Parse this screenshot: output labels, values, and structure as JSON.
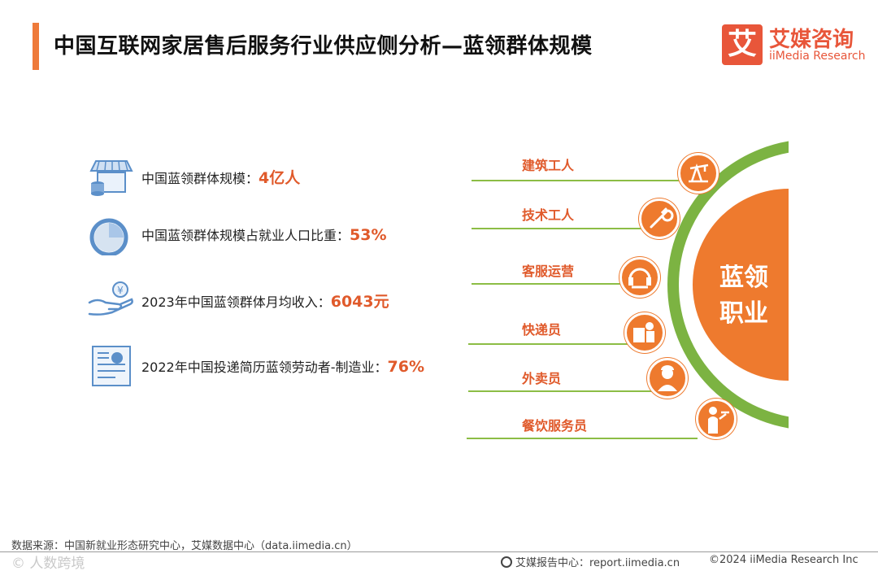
{
  "header": {
    "title": "中国互联网家居售后服务行业供应侧分析—蓝领群体规模",
    "logo_glyph": "艾",
    "logo_cn": "艾媒咨询",
    "logo_en": "iiMedia Research",
    "accent_color": "#ee7a3a"
  },
  "stats": [
    {
      "icon": "storefront-icon",
      "label": "中国蓝领群体规模：",
      "value": "4亿人"
    },
    {
      "icon": "pie-chart-icon",
      "label": "中国蓝领群体规模占就业人口比重：",
      "value": "53%"
    },
    {
      "icon": "hand-coin-icon",
      "label": "2023年中国蓝领群体月均收入：",
      "value": "6043元"
    },
    {
      "icon": "resume-document-icon",
      "label": "2022年中国投递简历蓝领劳动者-制造业：",
      "value": "76%"
    }
  ],
  "diagram": {
    "center_label_line1": "蓝领",
    "center_label_line2": "职业",
    "roles": [
      {
        "label": "建筑工人",
        "icon": "oil-pump-icon"
      },
      {
        "label": "技术工人",
        "icon": "wrench-icon"
      },
      {
        "label": "客服运营",
        "icon": "headset-icon"
      },
      {
        "label": "快递员",
        "icon": "courier-icon"
      },
      {
        "label": "外卖员",
        "icon": "delivery-rider-icon"
      },
      {
        "label": "餐饮服务员",
        "icon": "waiter-icon"
      }
    ],
    "ring_color": "#7cb342",
    "center_color": "#ee7a2e"
  },
  "footer": {
    "source": "数据来源：中国新就业形态研究中心，艾媒数据中心（data.iimedia.cn）",
    "watermark": "© 人数跨境",
    "report_center": "艾媒报告中心：report.iimedia.cn",
    "copyright": "©2024  iiMedia Research  Inc"
  }
}
